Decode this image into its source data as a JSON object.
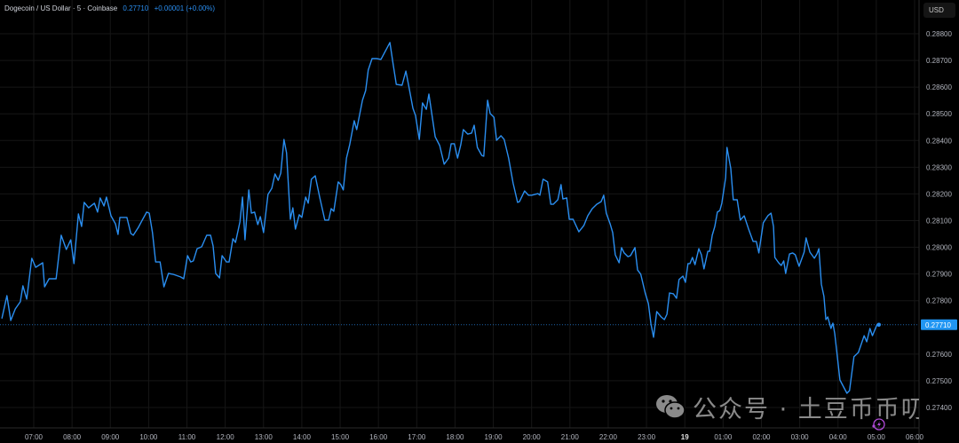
{
  "legend": {
    "symbol": "Dogecoin / US Dollar · 5 · Coinbase",
    "last": "0.27710",
    "change": "+0.00001 (+0.00%)"
  },
  "currency_button": "USD",
  "watermark": "公众号 · 土豆币币叨",
  "colors": {
    "line": "#2a8ef0",
    "background": "#000000",
    "grid": "#1a1a1a",
    "last_price_badge": "#2196f3",
    "lightning_icon": "#b04ad8"
  },
  "icons": [
    "wechat-icon",
    "lightning-icon"
  ],
  "chart_data": {
    "type": "line",
    "title": "Dogecoin / US Dollar · 5 · Coinbase",
    "ylabel": "USD",
    "ylim": [
      0.2735,
      0.2891
    ],
    "y_ticks": [
      "0.28800",
      "0.28700",
      "0.28600",
      "0.28500",
      "0.28400",
      "0.28300",
      "0.28200",
      "0.28100",
      "0.28000",
      "0.27900",
      "0.27800",
      "0.27600",
      "0.27500",
      "0.27400"
    ],
    "x_ticks": [
      "07:00",
      "08:00",
      "09:00",
      "10:00",
      "11:00",
      "12:00",
      "13:00",
      "14:00",
      "15:00",
      "16:00",
      "17:00",
      "18:00",
      "19:00",
      "20:00",
      "21:00",
      "22:00",
      "23:00",
      "19",
      "01:00",
      "02:00",
      "03:00",
      "04:00",
      "05:00",
      "06:00"
    ],
    "last_price_label": "0.27710",
    "grid": true,
    "series": [
      {
        "points": [
          [
            "06:10",
            0.27733
          ],
          [
            "06:18",
            0.27819
          ],
          [
            "06:24",
            0.27726
          ],
          [
            "06:31",
            0.27769
          ],
          [
            "06:39",
            0.27796
          ],
          [
            "06:43",
            0.27856
          ],
          [
            "06:49",
            0.27806
          ],
          [
            "06:57",
            0.27959
          ],
          [
            "07:03",
            0.27925
          ],
          [
            "07:14",
            0.27942
          ],
          [
            "07:17",
            0.27852
          ],
          [
            "07:24",
            0.27882
          ],
          [
            "07:35",
            0.27882
          ],
          [
            "07:43",
            0.28045
          ],
          [
            "07:51",
            0.27992
          ],
          [
            "07:58",
            0.28028
          ],
          [
            "08:03",
            0.27939
          ],
          [
            "08:10",
            0.28125
          ],
          [
            "08:15",
            0.28078
          ],
          [
            "08:19",
            0.28168
          ],
          [
            "08:26",
            0.28148
          ],
          [
            "08:35",
            0.28165
          ],
          [
            "08:40",
            0.28132
          ],
          [
            "08:44",
            0.28185
          ],
          [
            "08:50",
            0.28155
          ],
          [
            "08:54",
            0.28188
          ],
          [
            "09:01",
            0.28118
          ],
          [
            "09:08",
            0.28088
          ],
          [
            "09:12",
            0.28048
          ],
          [
            "09:15",
            0.28112
          ],
          [
            "09:26",
            0.28112
          ],
          [
            "09:32",
            0.28052
          ],
          [
            "09:36",
            0.28045
          ],
          [
            "09:44",
            0.28075
          ],
          [
            "09:50",
            0.28102
          ],
          [
            "09:57",
            0.28132
          ],
          [
            "10:01",
            0.28128
          ],
          [
            "10:06",
            0.28055
          ],
          [
            "10:11",
            0.27945
          ],
          [
            "10:18",
            0.27945
          ],
          [
            "10:24",
            0.27852
          ],
          [
            "10:31",
            0.27902
          ],
          [
            "10:38",
            0.27899
          ],
          [
            "10:50",
            0.27889
          ],
          [
            "10:55",
            0.27882
          ],
          [
            "11:01",
            0.27969
          ],
          [
            "11:06",
            0.27945
          ],
          [
            "11:10",
            0.27949
          ],
          [
            "11:16",
            0.27995
          ],
          [
            "11:23",
            0.28002
          ],
          [
            "11:31",
            0.28045
          ],
          [
            "11:37",
            0.28045
          ],
          [
            "11:41",
            0.28005
          ],
          [
            "11:45",
            0.27902
          ],
          [
            "11:51",
            0.27885
          ],
          [
            "11:55",
            0.27969
          ],
          [
            "12:02",
            0.27945
          ],
          [
            "12:06",
            0.27945
          ],
          [
            "12:12",
            0.28032
          ],
          [
            "12:16",
            0.28018
          ],
          [
            "12:23",
            0.28095
          ],
          [
            "12:27",
            0.28188
          ],
          [
            "12:31",
            0.28028
          ],
          [
            "12:37",
            0.28215
          ],
          [
            "12:41",
            0.28128
          ],
          [
            "12:46",
            0.28132
          ],
          [
            "12:51",
            0.28085
          ],
          [
            "12:55",
            0.28115
          ],
          [
            "13:00",
            0.28055
          ],
          [
            "13:07",
            0.28198
          ],
          [
            "13:13",
            0.28221
          ],
          [
            "13:18",
            0.28275
          ],
          [
            "13:23",
            0.28251
          ],
          [
            "13:27",
            0.28278
          ],
          [
            "13:32",
            0.28404
          ],
          [
            "13:36",
            0.28354
          ],
          [
            "13:42",
            0.28105
          ],
          [
            "13:46",
            0.28148
          ],
          [
            "13:50",
            0.28068
          ],
          [
            "13:56",
            0.28122
          ],
          [
            "14:00",
            0.28112
          ],
          [
            "14:06",
            0.28188
          ],
          [
            "14:10",
            0.28165
          ],
          [
            "14:15",
            0.28255
          ],
          [
            "14:21",
            0.28268
          ],
          [
            "14:28",
            0.28188
          ],
          [
            "14:36",
            0.28102
          ],
          [
            "14:42",
            0.28102
          ],
          [
            "14:46",
            0.28145
          ],
          [
            "14:50",
            0.28135
          ],
          [
            "14:57",
            0.28245
          ],
          [
            "15:01",
            0.28235
          ],
          [
            "15:05",
            0.28215
          ],
          [
            "15:10",
            0.28334
          ],
          [
            "15:15",
            0.28384
          ],
          [
            "15:22",
            0.28474
          ],
          [
            "15:26",
            0.28441
          ],
          [
            "15:35",
            0.28551
          ],
          [
            "15:40",
            0.28587
          ],
          [
            "15:44",
            0.28664
          ],
          [
            "15:50",
            0.28707
          ],
          [
            "15:57",
            0.28707
          ],
          [
            "16:04",
            0.28704
          ],
          [
            "16:18",
            0.28767
          ],
          [
            "16:23",
            0.28687
          ],
          [
            "16:28",
            0.2861
          ],
          [
            "16:37",
            0.28607
          ],
          [
            "16:43",
            0.2866
          ],
          [
            "16:47",
            0.2861
          ],
          [
            "16:54",
            0.28521
          ],
          [
            "16:58",
            0.28494
          ],
          [
            "17:04",
            0.28404
          ],
          [
            "17:09",
            0.28541
          ],
          [
            "17:15",
            0.28517
          ],
          [
            "17:19",
            0.28574
          ],
          [
            "17:25",
            0.28477
          ],
          [
            "17:29",
            0.28414
          ],
          [
            "17:36",
            0.28381
          ],
          [
            "17:43",
            0.28311
          ],
          [
            "17:50",
            0.28334
          ],
          [
            "17:54",
            0.28388
          ],
          [
            "17:59",
            0.28388
          ],
          [
            "18:04",
            0.28334
          ],
          [
            "18:09",
            0.28384
          ],
          [
            "18:13",
            0.28441
          ],
          [
            "18:20",
            0.28424
          ],
          [
            "18:26",
            0.28428
          ],
          [
            "18:30",
            0.28457
          ],
          [
            "18:35",
            0.28374
          ],
          [
            "18:42",
            0.28344
          ],
          [
            "18:45",
            0.28341
          ],
          [
            "18:51",
            0.28551
          ],
          [
            "18:55",
            0.28501
          ],
          [
            "19:01",
            0.28487
          ],
          [
            "19:05",
            0.28401
          ],
          [
            "19:12",
            0.28418
          ],
          [
            "19:17",
            0.28404
          ],
          [
            "19:24",
            0.28334
          ],
          [
            "19:31",
            0.28241
          ],
          [
            "19:38",
            0.28168
          ],
          [
            "19:41",
            0.28171
          ],
          [
            "19:49",
            0.28211
          ],
          [
            "19:55",
            0.28195
          ],
          [
            "20:00",
            0.28195
          ],
          [
            "20:10",
            0.28201
          ],
          [
            "20:13",
            0.28195
          ],
          [
            "20:18",
            0.28255
          ],
          [
            "20:25",
            0.28245
          ],
          [
            "20:30",
            0.28161
          ],
          [
            "20:34",
            0.28161
          ],
          [
            "20:41",
            0.28178
          ],
          [
            "20:46",
            0.28235
          ],
          [
            "20:49",
            0.28181
          ],
          [
            "20:55",
            0.28185
          ],
          [
            "20:59",
            0.28105
          ],
          [
            "21:05",
            0.28105
          ],
          [
            "21:14",
            0.28058
          ],
          [
            "21:22",
            0.28082
          ],
          [
            "21:28",
            0.28118
          ],
          [
            "21:35",
            0.28145
          ],
          [
            "21:42",
            0.28161
          ],
          [
            "21:49",
            0.28171
          ],
          [
            "21:53",
            0.28195
          ],
          [
            "21:57",
            0.28128
          ],
          [
            "22:03",
            0.28088
          ],
          [
            "22:07",
            0.28055
          ],
          [
            "22:11",
            0.27972
          ],
          [
            "22:17",
            0.27942
          ],
          [
            "22:21",
            0.27999
          ],
          [
            "22:25",
            0.27979
          ],
          [
            "22:31",
            0.27965
          ],
          [
            "22:35",
            0.27969
          ],
          [
            "22:42",
            0.27999
          ],
          [
            "22:46",
            0.27915
          ],
          [
            "22:51",
            0.27899
          ],
          [
            "22:58",
            0.27829
          ],
          [
            "23:03",
            0.27789
          ],
          [
            "23:07",
            0.27713
          ],
          [
            "23:11",
            0.27663
          ],
          [
            "23:16",
            0.27759
          ],
          [
            "23:23",
            0.27739
          ],
          [
            "23:28",
            0.27729
          ],
          [
            "23:32",
            0.27749
          ],
          [
            "23:36",
            0.27829
          ],
          [
            "23:42",
            0.27826
          ],
          [
            "23:47",
            0.27809
          ],
          [
            "23:51",
            0.27879
          ],
          [
            "23:57",
            0.27892
          ],
          [
            "00:01",
            0.27869
          ],
          [
            "00:05",
            0.27939
          ],
          [
            "00:08",
            0.27939
          ],
          [
            "00:12",
            0.27962
          ],
          [
            "00:16",
            0.27935
          ],
          [
            "00:22",
            0.27995
          ],
          [
            "00:26",
            0.27972
          ],
          [
            "00:30",
            0.27919
          ],
          [
            "00:36",
            0.27985
          ],
          [
            "00:39",
            0.27985
          ],
          [
            "00:43",
            0.28045
          ],
          [
            "00:47",
            0.28078
          ],
          [
            "00:51",
            0.28132
          ],
          [
            "00:55",
            0.28138
          ],
          [
            "00:58",
            0.28165
          ],
          [
            "01:04",
            0.28261
          ],
          [
            "01:06",
            0.28374
          ],
          [
            "01:12",
            0.28295
          ],
          [
            "01:16",
            0.28178
          ],
          [
            "01:22",
            0.28178
          ],
          [
            "01:27",
            0.28102
          ],
          [
            "01:33",
            0.28118
          ],
          [
            "01:40",
            0.28068
          ],
          [
            "01:47",
            0.28022
          ],
          [
            "01:52",
            0.28022
          ],
          [
            "01:56",
            0.27979
          ],
          [
            "02:03",
            0.28092
          ],
          [
            "02:10",
            0.28118
          ],
          [
            "02:15",
            0.28128
          ],
          [
            "02:19",
            0.28078
          ],
          [
            "02:21",
            0.27962
          ],
          [
            "02:27",
            0.27942
          ],
          [
            "02:31",
            0.27932
          ],
          [
            "02:35",
            0.27949
          ],
          [
            "02:38",
            0.27902
          ],
          [
            "02:44",
            0.27975
          ],
          [
            "02:49",
            0.27979
          ],
          [
            "02:53",
            0.27972
          ],
          [
            "02:59",
            0.27929
          ],
          [
            "03:07",
            0.27982
          ],
          [
            "03:10",
            0.28035
          ],
          [
            "03:16",
            0.27982
          ],
          [
            "03:23",
            0.27959
          ],
          [
            "03:27",
            0.27975
          ],
          [
            "03:30",
            0.27995
          ],
          [
            "03:34",
            0.27862
          ],
          [
            "03:38",
            0.27816
          ],
          [
            "03:41",
            0.27729
          ],
          [
            "03:44",
            0.27739
          ],
          [
            "03:49",
            0.27696
          ],
          [
            "03:52",
            0.27716
          ],
          [
            "03:55",
            0.27676
          ],
          [
            "04:03",
            0.27503
          ],
          [
            "04:14",
            0.27453
          ],
          [
            "04:18",
            0.27463
          ],
          [
            "04:25",
            0.2759
          ],
          [
            "04:32",
            0.27606
          ],
          [
            "04:41",
            0.27669
          ],
          [
            "04:45",
            0.27646
          ],
          [
            "04:50",
            0.27696
          ],
          [
            "04:54",
            0.27669
          ],
          [
            "05:01",
            0.2771
          ],
          [
            "05:04",
            0.2771
          ]
        ]
      }
    ]
  }
}
